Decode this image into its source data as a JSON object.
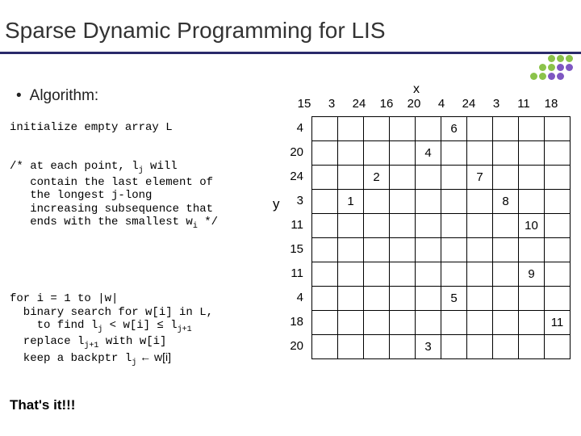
{
  "title": "Sparse Dynamic Programming for LIS",
  "bullet": "Algorithm:",
  "code1": "initialize empty array L",
  "code2_l1": "/* at each point, l",
  "code2_l1b": " will",
  "code2_l2": "   contain the last element of",
  "code2_l3": "   the longest j-long",
  "code2_l4": "   increasing subsequence that",
  "code2_l5": "   ends with the smallest w",
  "code2_l5b": " */",
  "code3_l1": "for i = 1 to |w|",
  "code3_l2": "  binary search for w[i] in L,",
  "code3_l3a": "    to find l",
  "code3_l3b": " < w[i] ≤ l",
  "code3_l4a": "  replace l",
  "code3_l4b": " with w[i]",
  "code3_l5a": "  keep a backptr l",
  "code3_l5b": " ← w[i]",
  "thatsit": "That's it!!!",
  "xlabel": "x",
  "ylabel": "y",
  "xticks": [
    "15",
    "3",
    "24",
    "16",
    "20",
    "4",
    "24",
    "3",
    "11",
    "18"
  ],
  "yticks": [
    "4",
    "20",
    "24",
    "3",
    "11",
    "15",
    "11",
    "4",
    "18",
    "20"
  ],
  "cells": {
    "0,5": "6",
    "1,4": "4",
    "2,2": "2",
    "2,6": "7",
    "3,1": "1",
    "3,7": "8",
    "4,8": "10",
    "6,8": "9",
    "7,5": "5",
    "8,9": "11",
    "9,4": "3"
  },
  "grid_rows": 10,
  "grid_cols": 10,
  "colors": {
    "rule": "#2a2a6a",
    "text": "#000000",
    "border": "#000000"
  }
}
